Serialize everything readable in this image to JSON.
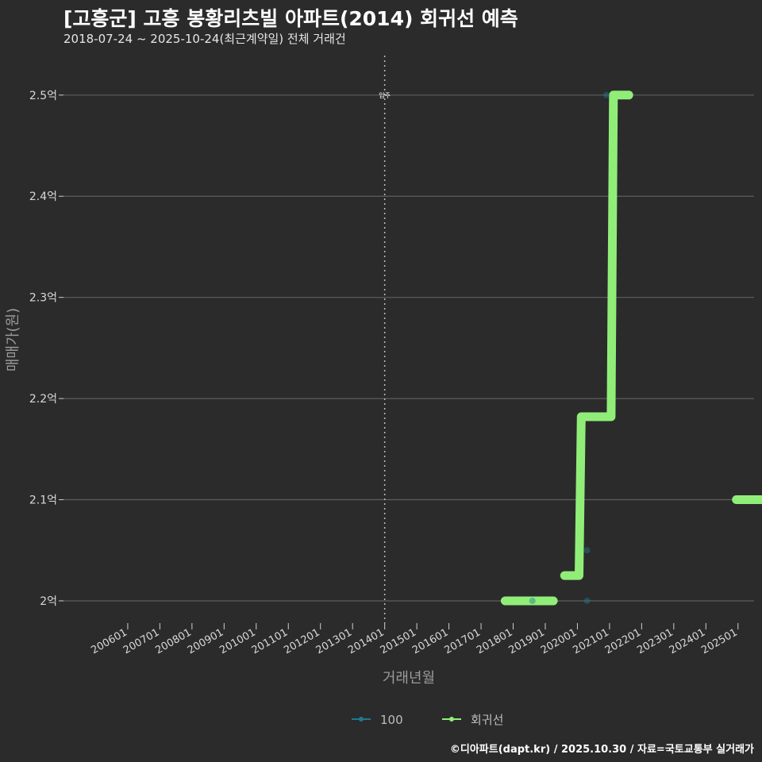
{
  "chart_data": {
    "type": "line",
    "title": "[고흥군] 고흥 봉황리츠빌 아파트(2014) 회귀선 예측",
    "subtitle": "2018-07-24 ~ 2025-10-24(최근계약일) 전체 거래건",
    "xlabel": "거래년월",
    "ylabel": "매매가(원)",
    "x_ticks": [
      "200601",
      "200701",
      "200801",
      "200901",
      "201001",
      "201101",
      "201201",
      "201301",
      "201401",
      "201501",
      "201601",
      "201701",
      "201801",
      "201901",
      "202001",
      "202101",
      "202201",
      "202301",
      "202401",
      "202501"
    ],
    "y_ticks": [
      {
        "value": 2.0,
        "label": "2억"
      },
      {
        "value": 2.1,
        "label": "2.1억"
      },
      {
        "value": 2.2,
        "label": "2.2억"
      },
      {
        "value": 2.3,
        "label": "2.3억"
      },
      {
        "value": 2.4,
        "label": "2.4억"
      },
      {
        "value": 2.5,
        "label": "2.5억"
      }
    ],
    "ylim": [
      1.978,
      2.543
    ],
    "xlim": [
      2005.0,
      2026.5
    ],
    "ymax_data": 2.5,
    "vline": {
      "x": 2014.0,
      "label": "입주"
    },
    "series": [
      {
        "name": "100",
        "color": "#1f7a8c",
        "kind": "scatter",
        "points": [
          {
            "x": 2018.6,
            "y": 2.0
          },
          {
            "x": 2020.3,
            "y": 2.0
          },
          {
            "x": 2020.3,
            "y": 2.05
          },
          {
            "x": 2020.9,
            "y": 2.5
          }
        ]
      },
      {
        "name": "회귀선",
        "color": "#90ee78",
        "kind": "line",
        "segments": [
          [
            {
              "x": 2017.75,
              "y": 2.0
            },
            {
              "x": 2019.25,
              "y": 2.0
            }
          ],
          [
            {
              "x": 2019.6,
              "y": 2.025
            },
            {
              "x": 2020.05,
              "y": 2.025
            },
            {
              "x": 2020.12,
              "y": 2.182
            },
            {
              "x": 2021.05,
              "y": 2.182
            },
            {
              "x": 2021.12,
              "y": 2.5
            },
            {
              "x": 2021.6,
              "y": 2.5
            }
          ],
          [
            {
              "x": 2024.95,
              "y": 2.1
            },
            {
              "x": 2025.75,
              "y": 2.1
            }
          ]
        ]
      }
    ],
    "legend": {
      "position": "bottom",
      "items": [
        "100",
        "회귀선"
      ]
    }
  },
  "caption": "©디아파트(dapt.kr) / 2025.10.30 / 자료=국토교통부 실거래가"
}
